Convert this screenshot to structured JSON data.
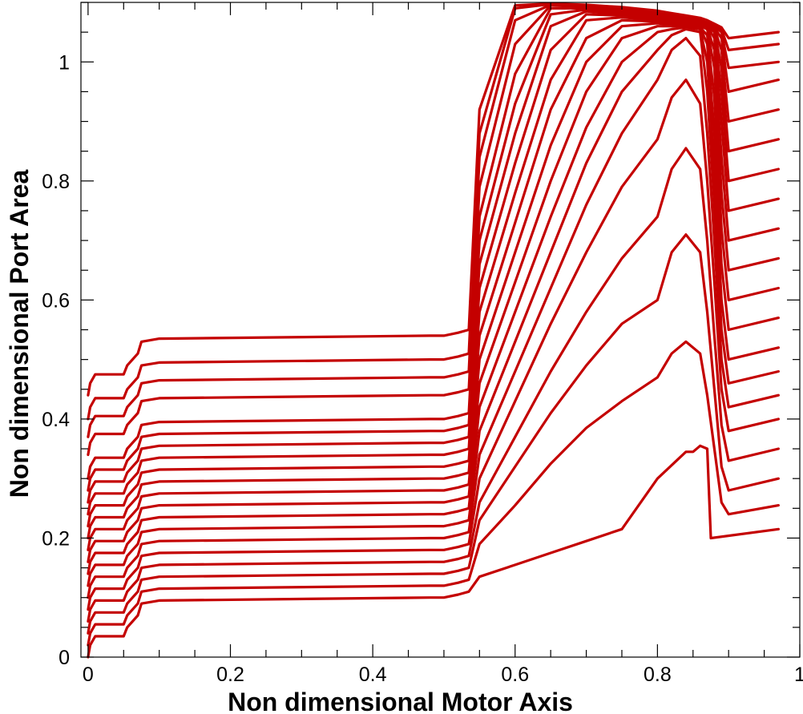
{
  "chart_data": {
    "type": "line",
    "title": "",
    "xlabel": "Non dimensional Motor Axis",
    "ylabel": "Non dimensional Port Area",
    "xlim": [
      -0.01,
      1.0
    ],
    "ylim": [
      0,
      1.1
    ],
    "x_major_ticks": [
      0,
      0.2,
      0.4,
      0.6,
      0.8,
      1
    ],
    "x_tick_labels": [
      "0",
      "0.2",
      "0.4",
      "0.6",
      "0.8",
      "1"
    ],
    "y_major_ticks": [
      0,
      0.2,
      0.4,
      0.6,
      0.8,
      1
    ],
    "y_tick_labels": [
      "0",
      "0.2",
      "0.4",
      "0.6",
      "0.8",
      "1"
    ],
    "x_minor_step": 0.05,
    "y_minor_step": 0.05,
    "grid": false,
    "legend": "none",
    "line_color": "#c40000",
    "series": [
      {
        "x": [
          0.0,
          0.003,
          0.01,
          0.05,
          0.055,
          0.07,
          0.075,
          0.1,
          0.48,
          0.5,
          0.52,
          0.535,
          0.55,
          0.6,
          0.65,
          0.7,
          0.75,
          0.8,
          0.84,
          0.85,
          0.86,
          0.87,
          0.875,
          0.97
        ],
        "y": [
          0.0,
          0.02,
          0.035,
          0.035,
          0.05,
          0.07,
          0.09,
          0.095,
          0.1,
          0.1,
          0.105,
          0.11,
          0.135,
          0.155,
          0.175,
          0.195,
          0.215,
          0.3,
          0.345,
          0.345,
          0.355,
          0.35,
          0.2,
          0.215
        ]
      },
      {
        "x": [
          0.0,
          0.003,
          0.01,
          0.05,
          0.055,
          0.07,
          0.075,
          0.1,
          0.48,
          0.5,
          0.52,
          0.535,
          0.55,
          0.6,
          0.65,
          0.7,
          0.75,
          0.8,
          0.82,
          0.84,
          0.86,
          0.87,
          0.88,
          0.89,
          0.9,
          0.97
        ],
        "y": [
          0.02,
          0.04,
          0.055,
          0.055,
          0.07,
          0.09,
          0.11,
          0.115,
          0.12,
          0.12,
          0.125,
          0.13,
          0.19,
          0.255,
          0.325,
          0.385,
          0.43,
          0.47,
          0.51,
          0.53,
          0.51,
          0.44,
          0.35,
          0.26,
          0.24,
          0.255
        ]
      },
      {
        "x": [
          0.0,
          0.003,
          0.01,
          0.05,
          0.055,
          0.07,
          0.075,
          0.1,
          0.48,
          0.5,
          0.52,
          0.535,
          0.55,
          0.6,
          0.65,
          0.7,
          0.75,
          0.8,
          0.82,
          0.84,
          0.86,
          0.87,
          0.88,
          0.89,
          0.9,
          0.97
        ],
        "y": [
          0.04,
          0.06,
          0.075,
          0.075,
          0.09,
          0.11,
          0.13,
          0.135,
          0.14,
          0.14,
          0.145,
          0.15,
          0.23,
          0.32,
          0.41,
          0.49,
          0.56,
          0.6,
          0.68,
          0.71,
          0.68,
          0.58,
          0.45,
          0.32,
          0.28,
          0.3
        ]
      },
      {
        "x": [
          0.0,
          0.003,
          0.01,
          0.05,
          0.055,
          0.07,
          0.075,
          0.1,
          0.48,
          0.5,
          0.52,
          0.535,
          0.55,
          0.6,
          0.65,
          0.7,
          0.75,
          0.8,
          0.82,
          0.84,
          0.86,
          0.87,
          0.88,
          0.89,
          0.9,
          0.97
        ],
        "y": [
          0.06,
          0.08,
          0.095,
          0.095,
          0.11,
          0.13,
          0.15,
          0.155,
          0.16,
          0.16,
          0.165,
          0.17,
          0.26,
          0.37,
          0.48,
          0.58,
          0.67,
          0.74,
          0.82,
          0.855,
          0.82,
          0.7,
          0.54,
          0.39,
          0.33,
          0.35
        ]
      },
      {
        "x": [
          0.0,
          0.003,
          0.01,
          0.05,
          0.055,
          0.07,
          0.075,
          0.1,
          0.48,
          0.5,
          0.52,
          0.535,
          0.55,
          0.6,
          0.65,
          0.7,
          0.75,
          0.8,
          0.82,
          0.84,
          0.86,
          0.87,
          0.88,
          0.89,
          0.9,
          0.97
        ],
        "y": [
          0.08,
          0.1,
          0.115,
          0.115,
          0.13,
          0.15,
          0.17,
          0.175,
          0.18,
          0.18,
          0.185,
          0.19,
          0.3,
          0.43,
          0.56,
          0.68,
          0.79,
          0.87,
          0.94,
          0.97,
          0.93,
          0.8,
          0.63,
          0.45,
          0.38,
          0.4
        ]
      },
      {
        "x": [
          0.0,
          0.003,
          0.01,
          0.05,
          0.055,
          0.07,
          0.075,
          0.1,
          0.48,
          0.5,
          0.52,
          0.535,
          0.55,
          0.6,
          0.65,
          0.7,
          0.75,
          0.8,
          0.82,
          0.84,
          0.86,
          0.87,
          0.88,
          0.89,
          0.9,
          0.97
        ],
        "y": [
          0.1,
          0.12,
          0.135,
          0.135,
          0.15,
          0.17,
          0.19,
          0.195,
          0.2,
          0.2,
          0.205,
          0.21,
          0.34,
          0.48,
          0.62,
          0.76,
          0.88,
          0.97,
          1.02,
          1.04,
          1.01,
          0.88,
          0.7,
          0.5,
          0.42,
          0.44
        ]
      },
      {
        "x": [
          0.0,
          0.003,
          0.01,
          0.05,
          0.055,
          0.07,
          0.075,
          0.1,
          0.48,
          0.5,
          0.52,
          0.535,
          0.55,
          0.6,
          0.65,
          0.7,
          0.75,
          0.8,
          0.82,
          0.84,
          0.86,
          0.87,
          0.88,
          0.89,
          0.9,
          0.97
        ],
        "y": [
          0.12,
          0.14,
          0.155,
          0.155,
          0.17,
          0.19,
          0.21,
          0.215,
          0.22,
          0.22,
          0.225,
          0.23,
          0.38,
          0.53,
          0.68,
          0.83,
          0.95,
          1.02,
          1.045,
          1.055,
          1.05,
          0.95,
          0.76,
          0.55,
          0.46,
          0.48
        ]
      },
      {
        "x": [
          0.0,
          0.003,
          0.01,
          0.05,
          0.055,
          0.07,
          0.075,
          0.1,
          0.48,
          0.5,
          0.52,
          0.535,
          0.55,
          0.6,
          0.65,
          0.7,
          0.75,
          0.8,
          0.82,
          0.84,
          0.86,
          0.87,
          0.88,
          0.89,
          0.9,
          0.97
        ],
        "y": [
          0.14,
          0.16,
          0.175,
          0.175,
          0.19,
          0.21,
          0.23,
          0.235,
          0.24,
          0.24,
          0.245,
          0.25,
          0.42,
          0.58,
          0.74,
          0.89,
          1.0,
          1.05,
          1.055,
          1.058,
          1.055,
          1.0,
          0.82,
          0.6,
          0.5,
          0.52
        ]
      },
      {
        "x": [
          0.0,
          0.003,
          0.01,
          0.05,
          0.055,
          0.07,
          0.075,
          0.1,
          0.48,
          0.5,
          0.52,
          0.535,
          0.55,
          0.6,
          0.65,
          0.7,
          0.75,
          0.8,
          0.82,
          0.84,
          0.86,
          0.87,
          0.88,
          0.89,
          0.9,
          0.97
        ],
        "y": [
          0.16,
          0.18,
          0.195,
          0.195,
          0.21,
          0.23,
          0.25,
          0.255,
          0.26,
          0.26,
          0.265,
          0.27,
          0.46,
          0.63,
          0.8,
          0.95,
          1.04,
          1.06,
          1.06,
          1.06,
          1.058,
          1.03,
          0.88,
          0.66,
          0.55,
          0.57
        ]
      },
      {
        "x": [
          0.0,
          0.003,
          0.01,
          0.05,
          0.055,
          0.07,
          0.075,
          0.1,
          0.48,
          0.5,
          0.52,
          0.535,
          0.55,
          0.6,
          0.65,
          0.7,
          0.75,
          0.8,
          0.82,
          0.84,
          0.86,
          0.87,
          0.88,
          0.89,
          0.9,
          0.97
        ],
        "y": [
          0.18,
          0.2,
          0.215,
          0.215,
          0.23,
          0.25,
          0.27,
          0.275,
          0.28,
          0.28,
          0.285,
          0.29,
          0.5,
          0.68,
          0.86,
          1.0,
          1.06,
          1.065,
          1.062,
          1.06,
          1.058,
          1.045,
          0.94,
          0.72,
          0.6,
          0.62
        ]
      },
      {
        "x": [
          0.0,
          0.003,
          0.01,
          0.05,
          0.055,
          0.07,
          0.075,
          0.1,
          0.48,
          0.5,
          0.52,
          0.535,
          0.55,
          0.6,
          0.65,
          0.7,
          0.75,
          0.8,
          0.82,
          0.84,
          0.86,
          0.87,
          0.88,
          0.89,
          0.9,
          0.97
        ],
        "y": [
          0.2,
          0.22,
          0.235,
          0.235,
          0.25,
          0.27,
          0.29,
          0.295,
          0.3,
          0.3,
          0.305,
          0.31,
          0.54,
          0.73,
          0.92,
          1.04,
          1.07,
          1.068,
          1.065,
          1.062,
          1.06,
          1.055,
          0.99,
          0.78,
          0.65,
          0.67
        ]
      },
      {
        "x": [
          0.0,
          0.003,
          0.01,
          0.05,
          0.055,
          0.07,
          0.075,
          0.1,
          0.48,
          0.5,
          0.52,
          0.535,
          0.55,
          0.6,
          0.65,
          0.7,
          0.75,
          0.8,
          0.82,
          0.84,
          0.86,
          0.87,
          0.88,
          0.89,
          0.9,
          0.97
        ],
        "y": [
          0.22,
          0.24,
          0.255,
          0.255,
          0.27,
          0.29,
          0.31,
          0.315,
          0.32,
          0.32,
          0.325,
          0.33,
          0.58,
          0.78,
          0.97,
          1.07,
          1.075,
          1.07,
          1.067,
          1.064,
          1.062,
          1.058,
          1.02,
          0.84,
          0.7,
          0.72
        ]
      },
      {
        "x": [
          0.0,
          0.003,
          0.01,
          0.05,
          0.055,
          0.07,
          0.075,
          0.1,
          0.48,
          0.5,
          0.52,
          0.535,
          0.55,
          0.6,
          0.65,
          0.7,
          0.75,
          0.8,
          0.82,
          0.84,
          0.86,
          0.87,
          0.88,
          0.89,
          0.9,
          0.97
        ],
        "y": [
          0.24,
          0.26,
          0.275,
          0.275,
          0.29,
          0.31,
          0.33,
          0.335,
          0.34,
          0.34,
          0.345,
          0.35,
          0.62,
          0.83,
          1.02,
          1.08,
          1.078,
          1.072,
          1.069,
          1.066,
          1.063,
          1.06,
          1.04,
          0.9,
          0.75,
          0.77
        ]
      },
      {
        "x": [
          0.0,
          0.003,
          0.01,
          0.05,
          0.055,
          0.07,
          0.075,
          0.1,
          0.48,
          0.5,
          0.52,
          0.535,
          0.55,
          0.6,
          0.65,
          0.7,
          0.75,
          0.8,
          0.82,
          0.84,
          0.86,
          0.87,
          0.88,
          0.89,
          0.9,
          0.97
        ],
        "y": [
          0.26,
          0.28,
          0.295,
          0.295,
          0.31,
          0.33,
          0.35,
          0.355,
          0.36,
          0.36,
          0.365,
          0.37,
          0.66,
          0.88,
          1.06,
          1.085,
          1.08,
          1.074,
          1.07,
          1.067,
          1.064,
          1.061,
          1.05,
          0.95,
          0.8,
          0.82
        ]
      },
      {
        "x": [
          0.0,
          0.003,
          0.01,
          0.05,
          0.055,
          0.07,
          0.075,
          0.1,
          0.48,
          0.5,
          0.52,
          0.535,
          0.55,
          0.6,
          0.65,
          0.7,
          0.75,
          0.8,
          0.82,
          0.84,
          0.86,
          0.87,
          0.88,
          0.89,
          0.9,
          0.97
        ],
        "y": [
          0.28,
          0.3,
          0.315,
          0.315,
          0.33,
          0.35,
          0.37,
          0.375,
          0.38,
          0.38,
          0.385,
          0.39,
          0.7,
          0.93,
          1.08,
          1.088,
          1.082,
          1.076,
          1.072,
          1.068,
          1.065,
          1.062,
          1.055,
          0.99,
          0.85,
          0.87
        ]
      },
      {
        "x": [
          0.0,
          0.003,
          0.01,
          0.05,
          0.055,
          0.07,
          0.075,
          0.1,
          0.48,
          0.5,
          0.52,
          0.535,
          0.55,
          0.6,
          0.65,
          0.7,
          0.75,
          0.8,
          0.82,
          0.84,
          0.86,
          0.87,
          0.88,
          0.89,
          0.9,
          0.97
        ],
        "y": [
          0.3,
          0.32,
          0.335,
          0.335,
          0.35,
          0.37,
          0.39,
          0.395,
          0.4,
          0.4,
          0.405,
          0.41,
          0.74,
          0.98,
          1.09,
          1.09,
          1.084,
          1.078,
          1.074,
          1.07,
          1.066,
          1.063,
          1.057,
          1.02,
          0.9,
          0.92
        ]
      },
      {
        "x": [
          0.0,
          0.003,
          0.01,
          0.05,
          0.055,
          0.07,
          0.075,
          0.1,
          0.48,
          0.5,
          0.52,
          0.535,
          0.55,
          0.6,
          0.65,
          0.7,
          0.75,
          0.8,
          0.82,
          0.84,
          0.86,
          0.87,
          0.88,
          0.89,
          0.9,
          0.97
        ],
        "y": [
          0.34,
          0.36,
          0.375,
          0.375,
          0.39,
          0.41,
          0.43,
          0.435,
          0.44,
          0.44,
          0.445,
          0.45,
          0.79,
          1.03,
          1.095,
          1.092,
          1.086,
          1.08,
          1.076,
          1.072,
          1.068,
          1.064,
          1.058,
          1.04,
          0.95,
          0.97
        ]
      },
      {
        "x": [
          0.0,
          0.003,
          0.01,
          0.05,
          0.055,
          0.07,
          0.075,
          0.1,
          0.48,
          0.5,
          0.52,
          0.535,
          0.55,
          0.6,
          0.65,
          0.7,
          0.75,
          0.8,
          0.82,
          0.84,
          0.86,
          0.87,
          0.88,
          0.89,
          0.9,
          0.97
        ],
        "y": [
          0.37,
          0.39,
          0.405,
          0.405,
          0.42,
          0.44,
          0.46,
          0.465,
          0.47,
          0.47,
          0.475,
          0.48,
          0.84,
          1.07,
          1.096,
          1.094,
          1.088,
          1.082,
          1.078,
          1.074,
          1.07,
          1.066,
          1.06,
          1.05,
          0.99,
          1.0
        ]
      },
      {
        "x": [
          0.0,
          0.003,
          0.01,
          0.05,
          0.055,
          0.07,
          0.075,
          0.1,
          0.48,
          0.5,
          0.52,
          0.535,
          0.55,
          0.6,
          0.65,
          0.7,
          0.75,
          0.8,
          0.82,
          0.84,
          0.86,
          0.87,
          0.88,
          0.89,
          0.9,
          0.97
        ],
        "y": [
          0.4,
          0.42,
          0.435,
          0.435,
          0.45,
          0.47,
          0.49,
          0.495,
          0.5,
          0.5,
          0.505,
          0.51,
          0.88,
          1.09,
          1.097,
          1.095,
          1.09,
          1.084,
          1.08,
          1.076,
          1.072,
          1.068,
          1.062,
          1.055,
          1.02,
          1.03
        ]
      },
      {
        "x": [
          0.0,
          0.003,
          0.01,
          0.05,
          0.055,
          0.07,
          0.075,
          0.1,
          0.48,
          0.5,
          0.52,
          0.535,
          0.55,
          0.6,
          0.65,
          0.7,
          0.75,
          0.8,
          0.82,
          0.84,
          0.86,
          0.87,
          0.88,
          0.89,
          0.9,
          0.97
        ],
        "y": [
          0.44,
          0.46,
          0.475,
          0.475,
          0.49,
          0.51,
          0.53,
          0.535,
          0.54,
          0.54,
          0.545,
          0.55,
          0.92,
          1.095,
          1.098,
          1.096,
          1.092,
          1.086,
          1.082,
          1.078,
          1.074,
          1.07,
          1.064,
          1.058,
          1.04,
          1.05
        ]
      }
    ]
  }
}
